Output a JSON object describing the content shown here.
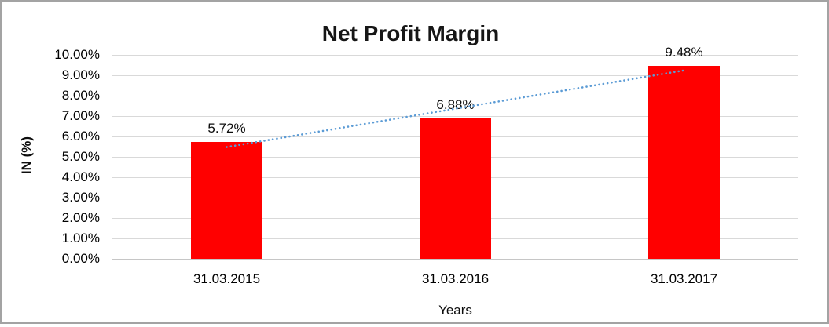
{
  "chart_data": {
    "type": "bar",
    "title": "Net Profit Margin",
    "xlabel": "Years",
    "ylabel": "IN (%)",
    "categories": [
      "31.03.2015",
      "31.03.2016",
      "31.03.2017"
    ],
    "series": [
      {
        "name": "Net Profit Margin",
        "values": [
          5.72,
          6.88,
          9.48
        ]
      }
    ],
    "data_labels": [
      "5.72%",
      "6.88%",
      "9.48%"
    ],
    "unit": "%",
    "ylim": [
      0,
      10
    ],
    "ytick_step": 1,
    "ytick_labels": [
      "0.00%",
      "1.00%",
      "2.00%",
      "3.00%",
      "4.00%",
      "5.00%",
      "6.00%",
      "7.00%",
      "8.00%",
      "9.00%",
      "10.00%"
    ],
    "grid": true,
    "legend": "none",
    "bar_color": "#FF0000",
    "gridline_color": "#D9D9D9",
    "baseline_color": "#C6C6C6",
    "trendline": {
      "type": "linear",
      "style": "dotted",
      "color": "#5B9BD5"
    }
  }
}
